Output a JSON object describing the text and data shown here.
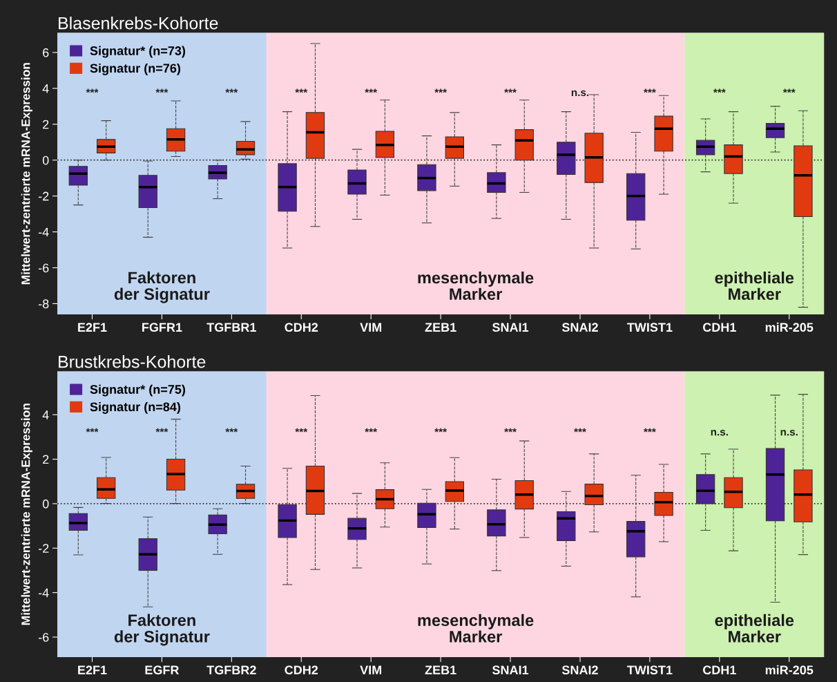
{
  "chart_data": [
    {
      "type": "box",
      "title": "Blasenkrebs-Kohorte",
      "ylabel": "Mittelwert-zentrierte mRNA-Expression",
      "categories": [
        "E2F1",
        "FGFR1",
        "TGFBR1",
        "CDH2",
        "VIM",
        "ZEB1",
        "SNAI1",
        "SNAI2",
        "TWIST1",
        "CDH1",
        "miR-205"
      ],
      "ylim": [
        -8.6,
        7.1
      ],
      "yticks": [
        -8,
        -6,
        -4,
        -2,
        0,
        2,
        4,
        6
      ],
      "grid": false,
      "legend": "top left",
      "series": [
        {
          "name": "Signatur* (n=73)",
          "color": "#4f2398",
          "boxes": [
            {
              "low": -2.5,
              "q1": -1.4,
              "median": -0.75,
              "q3": -0.35,
              "high": 0
            },
            {
              "low": -4.3,
              "q1": -2.65,
              "median": -1.5,
              "q3": -0.85,
              "high": -0.05
            },
            {
              "low": -2.15,
              "q1": -1.05,
              "median": -0.7,
              "q3": -0.3,
              "high": 0
            },
            {
              "low": -4.9,
              "q1": -2.85,
              "median": -1.5,
              "q3": -0.2,
              "high": 2.7
            },
            {
              "low": -3.3,
              "q1": -1.9,
              "median": -1.3,
              "q3": -0.55,
              "high": 0.6
            },
            {
              "low": -3.5,
              "q1": -1.7,
              "median": -1.0,
              "q3": -0.25,
              "high": 1.35
            },
            {
              "low": -3.25,
              "q1": -1.8,
              "median": -1.3,
              "q3": -0.7,
              "high": 0.85
            },
            {
              "low": -3.3,
              "q1": -0.8,
              "median": 0.3,
              "q3": 1.0,
              "high": 2.7
            },
            {
              "low": -4.95,
              "q1": -3.35,
              "median": -2.0,
              "q3": -0.75,
              "high": 1.55
            },
            {
              "low": -0.65,
              "q1": 0.3,
              "median": 0.75,
              "q3": 1.1,
              "high": 2.3
            },
            {
              "low": 0.45,
              "q1": 1.25,
              "median": 1.75,
              "q3": 2.05,
              "high": 3.0
            }
          ]
        },
        {
          "name": "Signatur (n=76)",
          "color": "#e23a10",
          "boxes": [
            {
              "low": 0,
              "q1": 0.4,
              "median": 0.75,
              "q3": 1.15,
              "high": 2.2
            },
            {
              "low": 0.2,
              "q1": 0.5,
              "median": 1.15,
              "q3": 1.75,
              "high": 3.3
            },
            {
              "low": 0.05,
              "q1": 0.3,
              "median": 0.6,
              "q3": 1.05,
              "high": 2.15
            },
            {
              "low": -3.7,
              "q1": 0.1,
              "median": 1.55,
              "q3": 2.65,
              "high": 6.5
            },
            {
              "low": -1.95,
              "q1": 0.15,
              "median": 0.85,
              "q3": 1.6,
              "high": 3.35
            },
            {
              "low": -1.45,
              "q1": 0.1,
              "median": 0.75,
              "q3": 1.3,
              "high": 2.65
            },
            {
              "low": -1.8,
              "q1": 0,
              "median": 1.1,
              "q3": 1.7,
              "high": 3.35
            },
            {
              "low": -4.9,
              "q1": -1.25,
              "median": 0.15,
              "q3": 1.5,
              "high": 3.65
            },
            {
              "low": -1.9,
              "q1": 0.5,
              "median": 1.75,
              "q3": 2.45,
              "high": 3.6
            },
            {
              "low": -2.4,
              "q1": -0.75,
              "median": 0.2,
              "q3": 0.85,
              "high": 2.7
            },
            {
              "low": -8.2,
              "q1": -3.15,
              "median": -0.85,
              "q3": 0.8,
              "high": 2.75
            }
          ]
        }
      ],
      "ref_lines": [
        {
          "axis": "y",
          "value": 0,
          "color": "#333333",
          "line_style": "dotted"
        }
      ],
      "bands": [
        {
          "axis": "x",
          "from": "E2F1",
          "to": "TGFBR1",
          "label": "Faktoren\nder Signatur",
          "color": "#c0d5f0"
        },
        {
          "axis": "x",
          "from": "CDH2",
          "to": "TWIST1",
          "label": "mesenchymale\nMarker",
          "color": "#fed6e2"
        },
        {
          "axis": "x",
          "from": "CDH1",
          "to": "miR-205",
          "label": "epitheliale\nMarker",
          "color": "#cdf1b0"
        }
      ],
      "annotations": [
        "***",
        "***",
        "***",
        "***",
        "***",
        "***",
        "***",
        "n.s.",
        "***",
        "***",
        "***"
      ]
    },
    {
      "type": "box",
      "title": "Brustkrebs-Kohorte",
      "ylabel": "Mittelwert-zentrierte mRNA-Expression",
      "categories": [
        "E2F1",
        "EGFR",
        "TGFBR2",
        "CDH2",
        "VIM",
        "ZEB1",
        "SNAI1",
        "SNAI2",
        "TWIST1",
        "CDH1",
        "miR-205"
      ],
      "ylim": [
        -6.9,
        5.95
      ],
      "yticks": [
        -6,
        -4,
        -2,
        0,
        2,
        4
      ],
      "grid": false,
      "legend": "top left",
      "series": [
        {
          "name": "Signatur* (n=75)",
          "color": "#4f2398",
          "boxes": [
            {
              "low": -2.3,
              "q1": -1.2,
              "median": -0.87,
              "q3": -0.45,
              "high": -0.17
            },
            {
              "low": -4.64,
              "q1": -3.0,
              "median": -2.28,
              "q3": -1.57,
              "high": -0.6
            },
            {
              "low": -2.28,
              "q1": -1.35,
              "median": -0.94,
              "q3": -0.51,
              "high": -0.23
            },
            {
              "low": -3.64,
              "q1": -1.52,
              "median": -0.76,
              "q3": -0.04,
              "high": 1.59
            },
            {
              "low": -2.89,
              "q1": -1.61,
              "median": -1.11,
              "q3": -0.66,
              "high": 0.46
            },
            {
              "low": -2.71,
              "q1": -1.07,
              "median": -0.48,
              "q3": 0.02,
              "high": 0.64
            },
            {
              "low": -3.01,
              "q1": -1.45,
              "median": -0.93,
              "q3": -0.28,
              "high": 1.1
            },
            {
              "low": -2.81,
              "q1": -1.66,
              "median": -0.66,
              "q3": -0.36,
              "high": 0.55
            },
            {
              "low": -4.19,
              "q1": -2.39,
              "median": -1.24,
              "q3": -0.8,
              "high": 1.28
            },
            {
              "low": -1.2,
              "q1": 0,
              "median": 0.58,
              "q3": 1.31,
              "high": 2.24
            },
            {
              "low": -4.43,
              "q1": -0.77,
              "median": 1.31,
              "q3": 2.48,
              "high": 4.88
            }
          ]
        },
        {
          "name": "Signatur (n=84)",
          "color": "#e23a10",
          "boxes": [
            {
              "low": 0.01,
              "q1": 0.24,
              "median": 0.64,
              "q3": 1.17,
              "high": 2.08
            },
            {
              "low": 0.01,
              "q1": 0.61,
              "median": 1.33,
              "q3": 2.0,
              "high": 3.8
            },
            {
              "low": 0.01,
              "q1": 0.24,
              "median": 0.57,
              "q3": 0.87,
              "high": 1.69
            },
            {
              "low": -2.96,
              "q1": -0.48,
              "median": 0.57,
              "q3": 1.69,
              "high": 4.86
            },
            {
              "low": -1.05,
              "q1": -0.23,
              "median": 0.2,
              "q3": 0.63,
              "high": 1.84
            },
            {
              "low": -1.14,
              "q1": 0.1,
              "median": 0.59,
              "q3": 0.99,
              "high": 2.07
            },
            {
              "low": -1.52,
              "q1": -0.24,
              "median": 0.41,
              "q3": 1.04,
              "high": 2.82
            },
            {
              "low": -1.27,
              "q1": -0.05,
              "median": 0.35,
              "q3": 0.88,
              "high": 2.24
            },
            {
              "low": -1.71,
              "q1": -0.53,
              "median": 0.07,
              "q3": 0.51,
              "high": 1.77
            },
            {
              "low": -2.12,
              "q1": -0.18,
              "median": 0.53,
              "q3": 1.17,
              "high": 2.45
            },
            {
              "low": -2.29,
              "q1": -0.82,
              "median": 0.41,
              "q3": 1.52,
              "high": 4.92
            }
          ]
        }
      ],
      "ref_lines": [
        {
          "axis": "y",
          "value": 0,
          "color": "#333333",
          "line_style": "dotted"
        }
      ],
      "bands": [
        {
          "axis": "x",
          "from": "E2F1",
          "to": "TGFBR2",
          "label": "Faktoren\nder Signatur",
          "color": "#c0d5f0"
        },
        {
          "axis": "x",
          "from": "CDH2",
          "to": "TWIST1",
          "label": "mesenchymale\nMarker",
          "color": "#fed6e2"
        },
        {
          "axis": "x",
          "from": "CDH1",
          "to": "miR-205",
          "label": "epitheliale\nMarker",
          "color": "#cdf1b0"
        }
      ],
      "annotations": [
        "***",
        "***",
        "***",
        "***",
        "***",
        "***",
        "***",
        "***",
        "***",
        "n.s.",
        "n.s."
      ]
    }
  ]
}
